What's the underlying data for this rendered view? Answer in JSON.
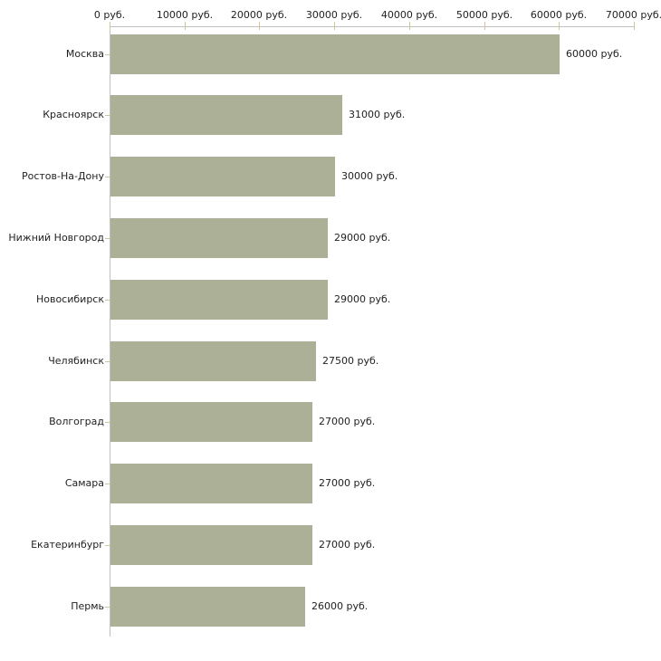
{
  "chart_data": {
    "type": "bar",
    "orientation": "horizontal",
    "title": "",
    "xlabel": "",
    "ylabel": "",
    "xlim": [
      0,
      70000
    ],
    "grid": "off",
    "legend": "none",
    "unit_suffix": " руб.",
    "categories": [
      "Москва",
      "Красноярск",
      "Ростов-На-Дону",
      "Нижний Новгород",
      "Новосибирск",
      "Челябинск",
      "Волгоград",
      "Самара",
      "Екатеринбург",
      "Пермь"
    ],
    "values": [
      60000,
      31000,
      30000,
      29000,
      29000,
      27500,
      27000,
      27000,
      27000,
      26000
    ],
    "value_labels": [
      "60000 руб.",
      "31000 руб.",
      "30000 руб.",
      "29000 руб.",
      "29000 руб.",
      "27500 руб.",
      "27000 руб.",
      "27000 руб.",
      "27000 руб.",
      "26000 руб."
    ],
    "x_ticks": [
      {
        "value": 0,
        "label": "0 руб."
      },
      {
        "value": 10000,
        "label": "10000 руб."
      },
      {
        "value": 20000,
        "label": "20000 руб."
      },
      {
        "value": 30000,
        "label": "30000 руб."
      },
      {
        "value": 40000,
        "label": "40000 руб."
      },
      {
        "value": 50000,
        "label": "50000 руб."
      },
      {
        "value": 60000,
        "label": "60000 руб."
      },
      {
        "value": 70000,
        "label": "70000 руб."
      }
    ],
    "colors": {
      "bar": "#abb096",
      "axis": "#c0c0c0",
      "tick": "#cdc79b",
      "text": "#222222",
      "background": "#ffffff"
    }
  }
}
